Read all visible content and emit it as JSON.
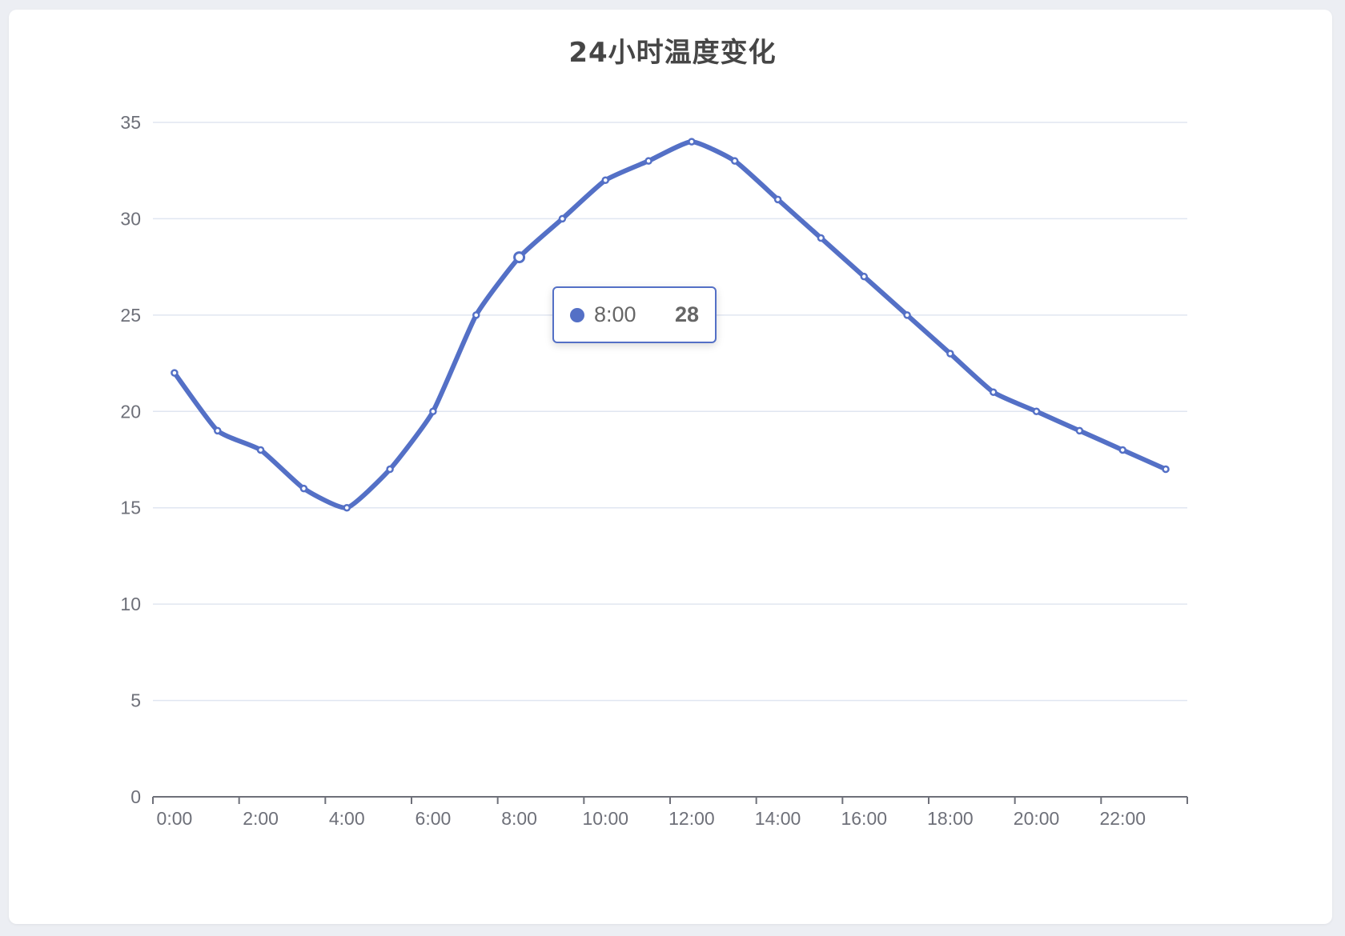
{
  "chart_data": {
    "type": "line",
    "title": "24小时温度变化",
    "xlabel": "",
    "ylabel": "",
    "categories": [
      "0:00",
      "1:00",
      "2:00",
      "3:00",
      "4:00",
      "5:00",
      "6:00",
      "7:00",
      "8:00",
      "9:00",
      "10:00",
      "11:00",
      "12:00",
      "13:00",
      "14:00",
      "15:00",
      "16:00",
      "17:00",
      "18:00",
      "19:00",
      "20:00",
      "21:00",
      "22:00",
      "23:00"
    ],
    "x_tick_labels": [
      "0:00",
      "2:00",
      "4:00",
      "6:00",
      "8:00",
      "10:00",
      "12:00",
      "14:00",
      "16:00",
      "18:00",
      "20:00",
      "22:00"
    ],
    "y_tick_labels": [
      "0",
      "5",
      "10",
      "15",
      "20",
      "25",
      "30",
      "35"
    ],
    "values": [
      22,
      19,
      18,
      16,
      15,
      17,
      20,
      25,
      28,
      30,
      32,
      33,
      34,
      33,
      31,
      29,
      27,
      25,
      23,
      21,
      20,
      19,
      18,
      17
    ],
    "ylim": [
      0,
      35
    ],
    "smooth": true,
    "grid": true,
    "legend": "none",
    "series_color": "#5470c6",
    "tooltip": {
      "label": "8:00",
      "value": "28"
    }
  }
}
